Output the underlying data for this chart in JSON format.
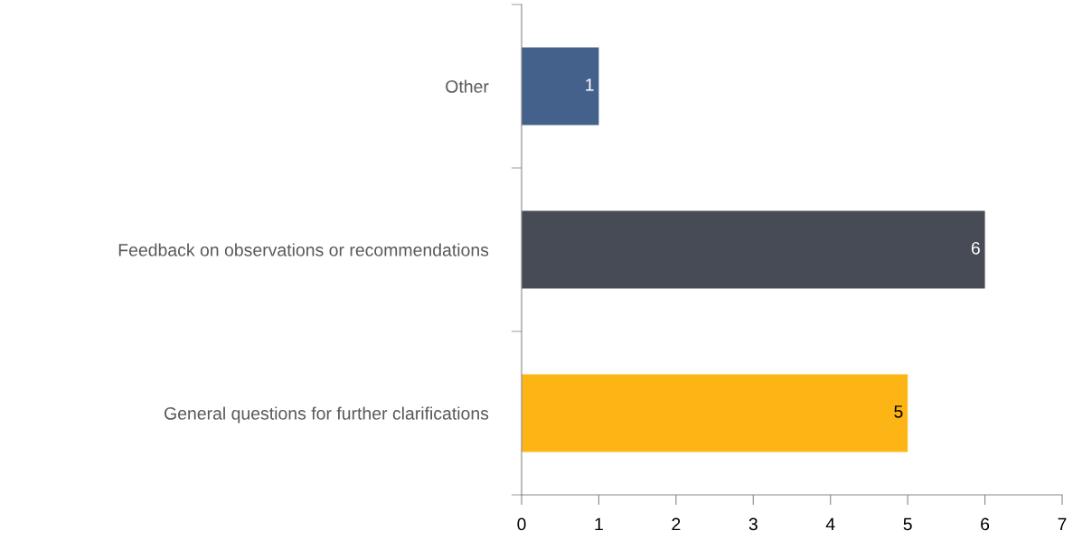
{
  "chart_data": {
    "type": "bar",
    "orientation": "horizontal",
    "categories": [
      "Other",
      "Feedback on observations or recommendations",
      "General questions for further clarifications"
    ],
    "values": [
      1,
      6,
      5
    ],
    "colors": [
      "#44618b",
      "#474b55",
      "#fdb515"
    ],
    "xlim": [
      0,
      7
    ],
    "xticks": [
      0,
      1,
      2,
      3,
      4,
      5,
      6,
      7
    ],
    "data_labels": true,
    "grid": false,
    "legend": false
  }
}
